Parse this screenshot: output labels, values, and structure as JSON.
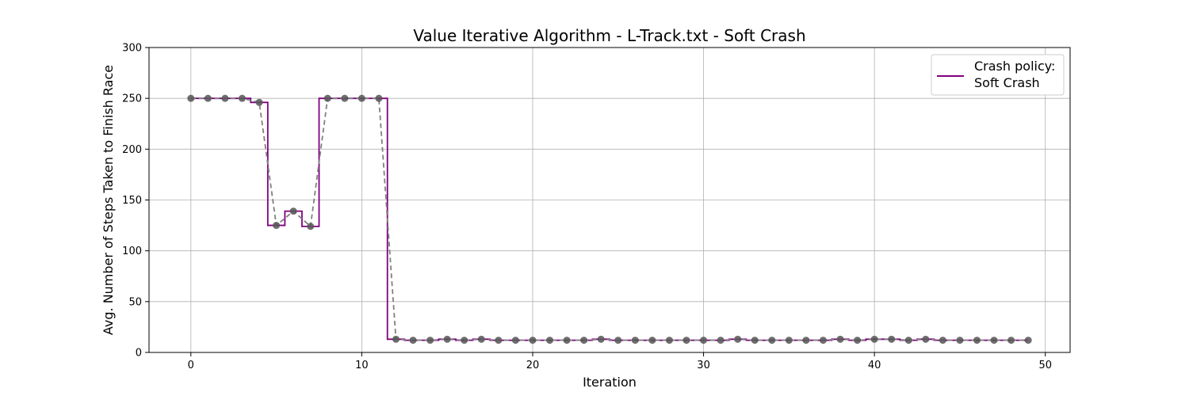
{
  "chart_data": {
    "type": "line",
    "title": "Value Iterative Algorithm - L-Track.txt - Soft Crash",
    "xlabel": "Iteration",
    "ylabel": "Avg. Number of Steps Taken to Finish Race",
    "xlim": [
      -2.45,
      51.45
    ],
    "ylim": [
      0,
      300
    ],
    "xticks": [
      0,
      10,
      20,
      30,
      40,
      50
    ],
    "yticks": [
      0,
      50,
      100,
      150,
      200,
      250,
      300
    ],
    "grid": true,
    "legend": {
      "position": "top-right",
      "title": "Crash policy:",
      "entry": "Soft Crash"
    },
    "colors": {
      "step": "#800080",
      "dashed": "#808080",
      "markers": "#555555"
    },
    "x": [
      0,
      1,
      2,
      3,
      4,
      5,
      6,
      7,
      8,
      9,
      10,
      11,
      12,
      13,
      14,
      15,
      16,
      17,
      18,
      19,
      20,
      21,
      22,
      23,
      24,
      25,
      26,
      27,
      28,
      29,
      30,
      31,
      32,
      33,
      34,
      35,
      36,
      37,
      38,
      39,
      40,
      41,
      42,
      43,
      44,
      45,
      46,
      47,
      48,
      49
    ],
    "series": [
      {
        "name": "Soft Crash",
        "values": [
          250,
          250,
          250,
          250,
          246,
          125,
          139,
          124,
          250,
          250,
          250,
          250,
          13,
          12,
          12,
          13,
          12,
          13,
          12,
          12,
          12,
          12,
          12,
          12,
          13,
          12,
          12,
          12,
          12,
          12,
          12,
          12,
          13,
          12,
          12,
          12,
          12,
          12,
          13,
          12,
          13,
          13,
          12,
          13,
          12,
          12,
          12,
          12,
          12,
          12
        ]
      }
    ]
  }
}
